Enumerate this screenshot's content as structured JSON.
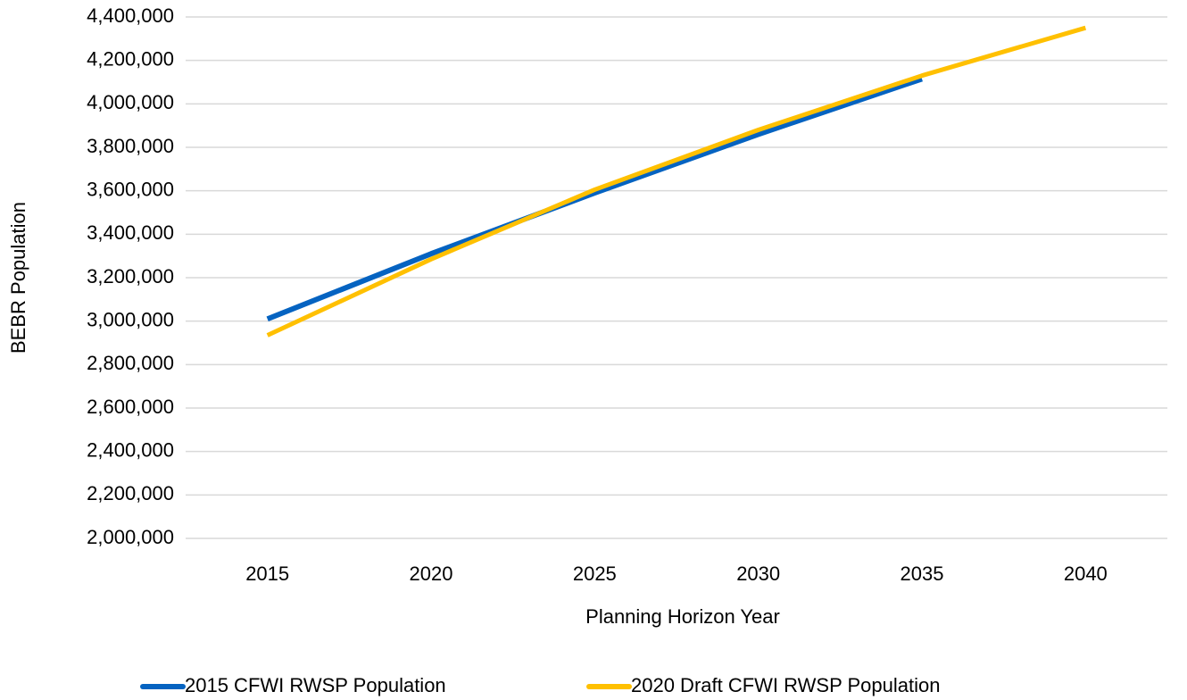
{
  "chart_data": {
    "type": "line",
    "xlabel": "Planning Horizon Year",
    "ylabel": "BEBR Population",
    "categories": [
      "2015",
      "2020",
      "2025",
      "2030",
      "2035",
      "2040"
    ],
    "series": [
      {
        "name": "2015 CFWI RWSP Population",
        "color": "#0563c1",
        "values": [
          3010000,
          3310000,
          3590000,
          3860000,
          4115000,
          null
        ]
      },
      {
        "name": "2020 Draft CFWI RWSP Population",
        "color": "#ffc000",
        "values": [
          2935000,
          3285000,
          3605000,
          3880000,
          4130000,
          4350000
        ]
      }
    ],
    "ylim": [
      2000000,
      4400000
    ],
    "yticks": [
      {
        "value": 2000000,
        "label": "2,000,000"
      },
      {
        "value": 2200000,
        "label": "2,200,000"
      },
      {
        "value": 2400000,
        "label": "2,400,000"
      },
      {
        "value": 2600000,
        "label": "2,600,000"
      },
      {
        "value": 2800000,
        "label": "2,800,000"
      },
      {
        "value": 3000000,
        "label": "3,000,000"
      },
      {
        "value": 3200000,
        "label": "3,200,000"
      },
      {
        "value": 3400000,
        "label": "3,400,000"
      },
      {
        "value": 3600000,
        "label": "3,600,000"
      },
      {
        "value": 3800000,
        "label": "3,800,000"
      },
      {
        "value": 4000000,
        "label": "4,000,000"
      },
      {
        "value": 4200000,
        "label": "4,200,000"
      },
      {
        "value": 4400000,
        "label": "4,400,000"
      }
    ],
    "grid": true,
    "legend": "bottom"
  }
}
